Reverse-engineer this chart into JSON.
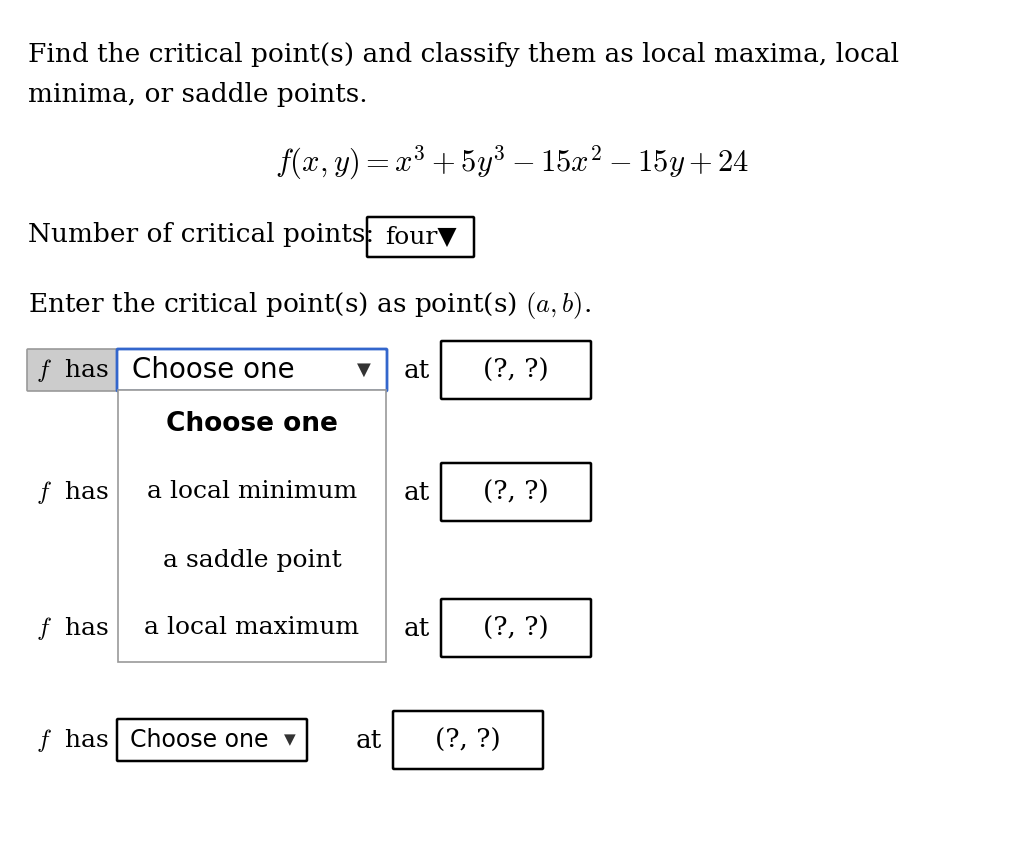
{
  "background_color": "#ffffff",
  "text_color": "#000000",
  "title_line1": "Find the critical point(s) and classify them as local maxima, local",
  "title_line2": "minima, or saddle points.",
  "formula_latex": "$f(x, y) = x^3 + 5y^3 - 15x^2 - 15y + 24$",
  "num_critical_label": "Number of critical points:",
  "num_critical_value": "four",
  "enter_label_part1": "Enter the critical point(s) as point(s) ",
  "enter_label_part2": "$(a, b)$.",
  "fhas_text": "$f$  has",
  "choose_one_text": "Choose one",
  "at_text": "at",
  "box_text": "(?, ?)",
  "dropdown_items": [
    "Choose one",
    "a local minimum",
    "a saddle point",
    "a local maximum"
  ],
  "choose_one2_text": "Choose one",
  "fhas_bg": "#cccccc",
  "dropdown_border_color": "#3366cc",
  "box_border_color": "#000000",
  "menu_border_color": "#999999",
  "font_size_body": 19,
  "font_size_formula": 22,
  "font_size_dropdown_main": 20,
  "font_size_menu": 18,
  "font_size_menu_header": 19
}
